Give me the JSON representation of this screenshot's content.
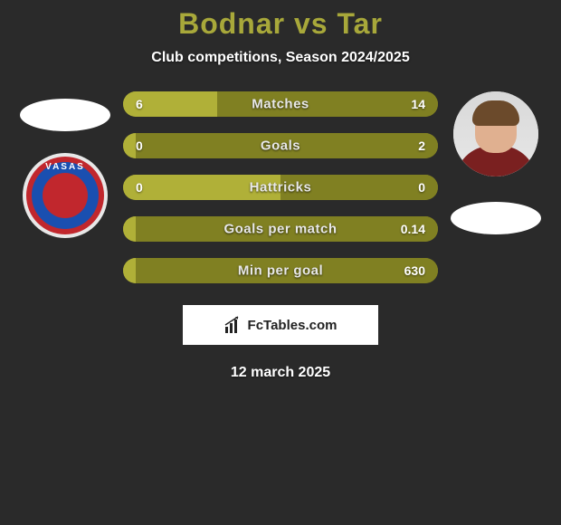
{
  "title": "Bodnar vs Tar",
  "subtitle": "Club competitions, Season 2024/2025",
  "footer_brand": "FcTables.com",
  "footer_date": "12 march 2025",
  "colors": {
    "bar_light": "#b0b038",
    "bar_dark": "#808022",
    "title_color": "#a8a83a",
    "background": "#2a2a2a"
  },
  "left_player": {
    "name": "Bodnar",
    "crest_text": "VASAS"
  },
  "right_player": {
    "name": "Tar"
  },
  "stats": [
    {
      "label": "Matches",
      "left_val": "6",
      "right_val": "14",
      "left_width_pct": 30,
      "right_width_pct": 70,
      "left_color": "#b0b038",
      "right_color": "#808022"
    },
    {
      "label": "Goals",
      "left_val": "0",
      "right_val": "2",
      "left_width_pct": 4,
      "right_width_pct": 96,
      "left_color": "#b0b038",
      "right_color": "#808022"
    },
    {
      "label": "Hattricks",
      "left_val": "0",
      "right_val": "0",
      "left_width_pct": 50,
      "right_width_pct": 50,
      "left_color": "#b0b038",
      "right_color": "#808022"
    },
    {
      "label": "Goals per match",
      "left_val": "",
      "right_val": "0.14",
      "left_width_pct": 4,
      "right_width_pct": 96,
      "left_color": "#b0b038",
      "right_color": "#808022"
    },
    {
      "label": "Min per goal",
      "left_val": "",
      "right_val": "630",
      "left_width_pct": 4,
      "right_width_pct": 96,
      "left_color": "#b0b038",
      "right_color": "#808022"
    }
  ]
}
